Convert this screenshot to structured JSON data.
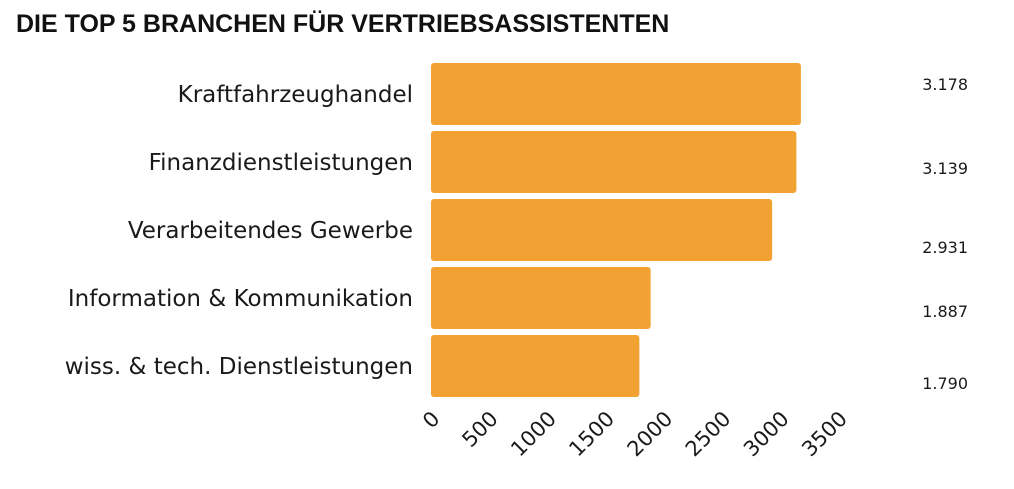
{
  "chart_data": {
    "type": "bar",
    "orientation": "horizontal",
    "title": "DIE TOP 5 BRANCHEN FÜR VERTRIEBSASSISTENTEN",
    "categories": [
      "Kraftfahrzeughandel",
      "Finanzdienstleistungen",
      "Verarbeitendes Gewerbe",
      "Information & Kommunikation",
      "wiss. & tech. Dienstleistungen"
    ],
    "values": [
      3178,
      3139,
      2931,
      1887,
      1790
    ],
    "value_labels": [
      "3.178",
      "3.139",
      "2.931",
      "1.887",
      "1.790"
    ],
    "xlim": [
      0,
      3500
    ],
    "xticks": [
      0,
      500,
      1000,
      1500,
      2000,
      2500,
      3000,
      3500
    ],
    "tick_labels": [
      "0",
      "500",
      "1000",
      "1500",
      "2000",
      "2500",
      "3000",
      "3500"
    ],
    "xlabel": "",
    "ylabel": "",
    "grid": false,
    "legend": "none",
    "bar_color": "#F2A232"
  }
}
